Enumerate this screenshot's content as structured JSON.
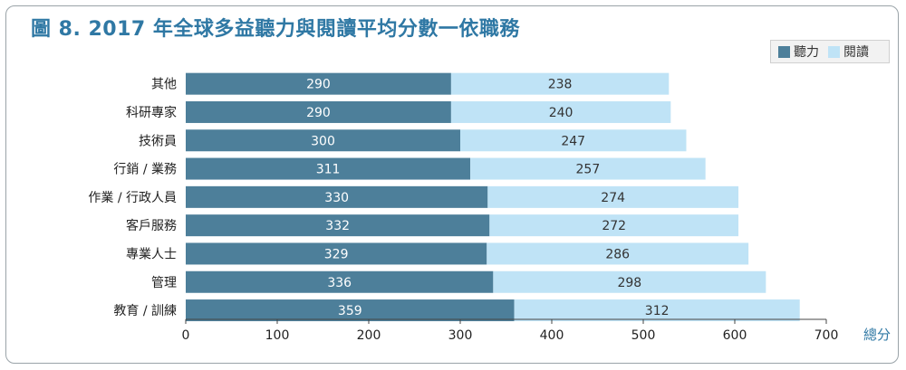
{
  "title": "圖 8. 2017 年全球多益聽力與閱讀平均分數一依職務",
  "chart_data": {
    "type": "bar",
    "orientation": "horizontal",
    "stacked": true,
    "title": "圖 8. 2017 年全球多益聽力與閱讀平均分數一依職務",
    "xlabel": "總分",
    "ylabel": "",
    "xlim": [
      0,
      700
    ],
    "xticks": [
      0,
      100,
      200,
      300,
      400,
      500,
      600,
      700
    ],
    "legend_position": "top-right",
    "categories": [
      "其他",
      "科研專家",
      "技術員",
      "行銷 / 業務",
      "作業 / 行政人員",
      "客戶服務",
      "專業人士",
      "管理",
      "教育 / 訓練"
    ],
    "series": [
      {
        "name": "聽力",
        "color": "#4d7f9a",
        "values": [
          290,
          290,
          300,
          311,
          330,
          332,
          329,
          336,
          359
        ]
      },
      {
        "name": "閱讀",
        "color": "#bfe3f6",
        "values": [
          238,
          240,
          247,
          257,
          274,
          272,
          286,
          298,
          312
        ]
      }
    ]
  }
}
